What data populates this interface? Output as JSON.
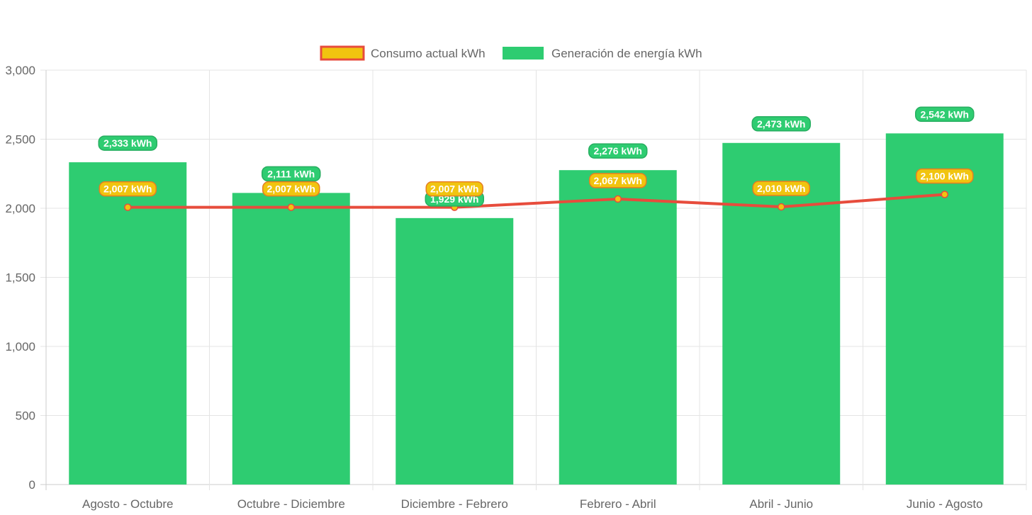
{
  "chart_data": {
    "type": "bar",
    "categories": [
      "Agosto - Octubre",
      "Octubre - Diciembre",
      "Diciembre - Febrero",
      "Febrero - Abril",
      "Abril - Junio",
      "Junio - Agosto"
    ],
    "series": [
      {
        "name": "Consumo actual kWh",
        "type": "line",
        "values": [
          2007,
          2007,
          2007,
          2067,
          2010,
          2100
        ],
        "labels": [
          "2,007 kWh",
          "2,007 kWh",
          "2,007 kWh",
          "2,067 kWh",
          "2,010 kWh",
          "2,100 kWh"
        ],
        "color": "#e74c3c",
        "fill_color": "#f1c40f"
      },
      {
        "name": "Generación de energía kWh",
        "type": "bar",
        "values": [
          2333,
          2111,
          1929,
          2276,
          2473,
          2542
        ],
        "labels": [
          "2,333 kWh",
          "2,111 kWh",
          "1,929 kWh",
          "2,276 kWh",
          "2,473 kWh",
          "2,542 kWh"
        ],
        "color": "#2ecc71"
      }
    ],
    "y_ticks": [
      "0",
      "500",
      "1,000",
      "1,500",
      "2,000",
      "2,500",
      "3,000"
    ],
    "ylim": [
      0,
      3000
    ],
    "grid": true,
    "legend_position": "top"
  }
}
